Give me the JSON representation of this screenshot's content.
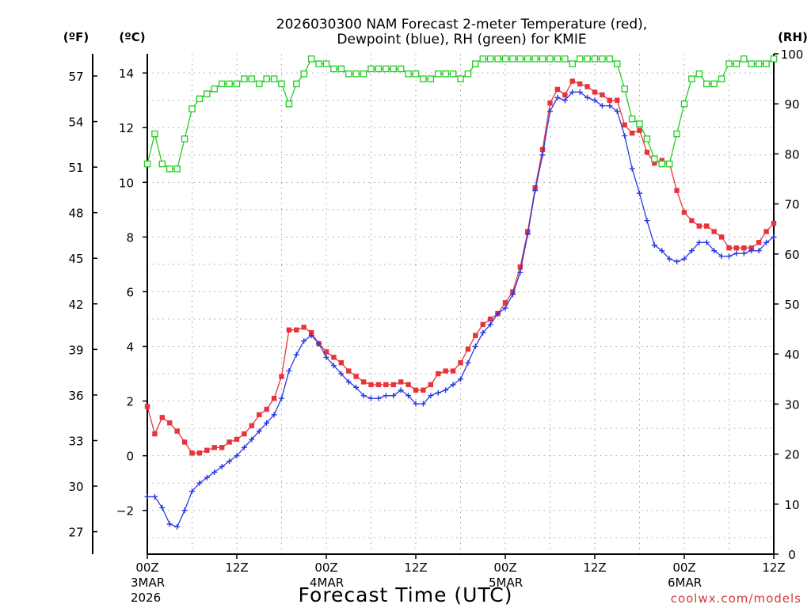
{
  "chart_data": {
    "type": "line",
    "title_line1": "2026030300 NAM Forecast 2-meter Temperature (red),",
    "title_line2": "Dewpoint (blue), RH (green) for KMIE",
    "xlabel": "Forecast Time (UTC)",
    "unit_f": "(ºF)",
    "unit_c": "(ºC)",
    "unit_rh": "(RH)",
    "credit": "coolwx.com/models",
    "x_hours_range": [
      0,
      84
    ],
    "x_ticks": [
      {
        "h": 0,
        "label": "00Z",
        "date": "3MAR",
        "year": "2026"
      },
      {
        "h": 12,
        "label": "12Z",
        "date": "",
        "year": ""
      },
      {
        "h": 24,
        "label": "00Z",
        "date": "4MAR",
        "year": ""
      },
      {
        "h": 36,
        "label": "12Z",
        "date": "",
        "year": ""
      },
      {
        "h": 48,
        "label": "00Z",
        "date": "5MAR",
        "year": ""
      },
      {
        "h": 60,
        "label": "12Z",
        "date": "",
        "year": ""
      },
      {
        "h": 72,
        "label": "00Z",
        "date": "6MAR",
        "year": ""
      },
      {
        "h": 84,
        "label": "12Z",
        "date": "",
        "year": ""
      }
    ],
    "ylim_c": [
      -3.6,
      14.7
    ],
    "y_ticks_c": [
      "-2",
      "0",
      "2",
      "4",
      "6",
      "8",
      "10",
      "12",
      "14"
    ],
    "y_ticks_f": [
      "27",
      "30",
      "33",
      "36",
      "39",
      "42",
      "45",
      "48",
      "51",
      "54",
      "57"
    ],
    "ylim_rh": [
      0,
      100
    ],
    "y_ticks_rh": [
      "0",
      "10",
      "20",
      "30",
      "40",
      "50",
      "60",
      "70",
      "80",
      "90",
      "100"
    ],
    "colors": {
      "temperature": "#e8333a",
      "dewpoint": "#2a3ae0",
      "rh": "#22cc22"
    },
    "series": [
      {
        "key": "temperature",
        "values": [
          1.8,
          0.8,
          1.4,
          1.2,
          0.9,
          0.5,
          0.1,
          0.1,
          0.2,
          0.3,
          0.3,
          0.5,
          0.6,
          0.8,
          1.1,
          1.5,
          1.7,
          2.1,
          2.9,
          4.6,
          4.6,
          4.7,
          4.5,
          4.1,
          3.8,
          3.6,
          3.4,
          3.1,
          2.9,
          2.7,
          2.6,
          2.6,
          2.6,
          2.6,
          2.7,
          2.6,
          2.4,
          2.4,
          2.6,
          3.0,
          3.1,
          3.1,
          3.4,
          3.9,
          4.4,
          4.8,
          5.0,
          5.2,
          5.6,
          6.0,
          6.9,
          8.2,
          9.8,
          11.2,
          12.9,
          13.4,
          13.2,
          13.7,
          13.6,
          13.5,
          13.3,
          13.2,
          13.0,
          13.0,
          12.1,
          11.8,
          11.9,
          11.1,
          10.7,
          10.8,
          10.7,
          9.7,
          8.9,
          8.6,
          8.4,
          8.4,
          8.2,
          8.0,
          7.6,
          7.6,
          7.6,
          7.6,
          7.8,
          8.2,
          8.5
        ]
      },
      {
        "key": "dewpoint",
        "values": [
          -1.5,
          -1.5,
          -1.9,
          -2.5,
          -2.6,
          -2.0,
          -1.3,
          -1.0,
          -0.8,
          -0.6,
          -0.4,
          -0.2,
          0.0,
          0.3,
          0.6,
          0.9,
          1.2,
          1.5,
          2.1,
          3.1,
          3.7,
          4.2,
          4.4,
          4.1,
          3.6,
          3.3,
          3.0,
          2.7,
          2.5,
          2.2,
          2.1,
          2.1,
          2.2,
          2.2,
          2.4,
          2.2,
          1.9,
          1.9,
          2.2,
          2.3,
          2.4,
          2.6,
          2.8,
          3.4,
          4.0,
          4.5,
          4.8,
          5.2,
          5.4,
          5.9,
          6.7,
          8.1,
          9.7,
          11.0,
          12.6,
          13.1,
          13.0,
          13.3,
          13.3,
          13.1,
          13.0,
          12.8,
          12.8,
          12.6,
          11.7,
          10.5,
          9.6,
          8.6,
          7.7,
          7.5,
          7.2,
          7.1,
          7.2,
          7.5,
          7.8,
          7.8,
          7.5,
          7.3,
          7.3,
          7.4,
          7.4,
          7.5,
          7.5,
          7.8,
          8.0
        ]
      },
      {
        "key": "rh",
        "values": [
          78,
          84,
          78,
          77,
          77,
          83,
          89,
          91,
          92,
          93,
          94,
          94,
          94,
          95,
          95,
          94,
          95,
          95,
          94,
          90,
          94,
          96,
          99,
          98,
          98,
          97,
          97,
          96,
          96,
          96,
          97,
          97,
          97,
          97,
          97,
          96,
          96,
          95,
          95,
          96,
          96,
          96,
          95,
          96,
          98,
          99,
          99,
          99,
          99,
          99,
          99,
          99,
          99,
          99,
          99,
          99,
          99,
          98,
          99,
          99,
          99,
          99,
          99,
          98,
          93,
          87,
          86,
          83,
          79,
          78,
          78,
          84,
          90,
          95,
          96,
          94,
          94,
          95,
          98,
          98,
          99,
          98,
          98,
          98,
          99
        ]
      }
    ]
  }
}
